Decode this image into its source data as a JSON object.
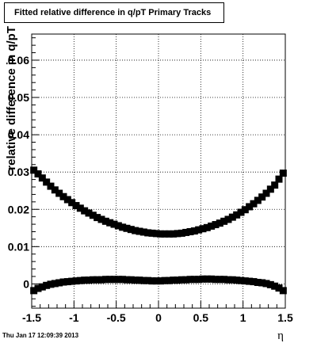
{
  "title": "Fitted relative difference in q/pT  Primary Tracks",
  "timestamp": "Thu Jan 17 12:09:39 2013",
  "chart_data": {
    "type": "scatter",
    "title": "Fitted relative difference in q/pT  Primary Tracks",
    "xlabel": "η",
    "ylabel": "relative difference in q/pT",
    "xlim": [
      -1.5,
      1.5
    ],
    "ylim": [
      -0.0065,
      0.067
    ],
    "grid": true,
    "marker": "filled-square",
    "marker_color": "#000000",
    "x_ticks": [
      {
        "value": -1.5,
        "label": "-1.5"
      },
      {
        "value": -1.0,
        "label": "-1"
      },
      {
        "value": -0.5,
        "label": "-0.5"
      },
      {
        "value": 0.0,
        "label": "0"
      },
      {
        "value": 0.5,
        "label": "0.5"
      },
      {
        "value": 1.0,
        "label": "1"
      },
      {
        "value": 1.5,
        "label": "1.5"
      }
    ],
    "y_ticks": [
      {
        "value": 0.0,
        "label": "0"
      },
      {
        "value": 0.01,
        "label": "0.01"
      },
      {
        "value": 0.02,
        "label": "0.02"
      },
      {
        "value": 0.03,
        "label": "0.03"
      },
      {
        "value": 0.04,
        "label": "0.04"
      },
      {
        "value": 0.05,
        "label": "0.05"
      },
      {
        "value": 0.06,
        "label": "0.06"
      }
    ],
    "series": [
      {
        "x": [
          -1.475,
          -1.425,
          -1.375,
          -1.325,
          -1.275,
          -1.225,
          -1.175,
          -1.125,
          -1.075,
          -1.025,
          -0.975,
          -0.925,
          -0.875,
          -0.825,
          -0.775,
          -0.725,
          -0.675,
          -0.625,
          -0.575,
          -0.525,
          -0.475,
          -0.425,
          -0.375,
          -0.325,
          -0.275,
          -0.225,
          -0.175,
          -0.125,
          -0.075,
          -0.025,
          0.025,
          0.075,
          0.125,
          0.175,
          0.225,
          0.275,
          0.325,
          0.375,
          0.425,
          0.475,
          0.525,
          0.575,
          0.625,
          0.675,
          0.725,
          0.775,
          0.825,
          0.875,
          0.925,
          0.975,
          1.025,
          1.075,
          1.125,
          1.175,
          1.225,
          1.275,
          1.325,
          1.375,
          1.425,
          1.475
        ],
        "y": [
          0.0305,
          0.0295,
          0.0284,
          0.0273,
          0.0262,
          0.0252,
          0.0243,
          0.0234,
          0.0226,
          0.0218,
          0.021,
          0.0203,
          0.0196,
          0.019,
          0.0184,
          0.0178,
          0.0173,
          0.0168,
          0.0164,
          0.016,
          0.0156,
          0.0152,
          0.0149,
          0.0146,
          0.0143,
          0.0141,
          0.0139,
          0.0137,
          0.0136,
          0.0135,
          0.0134,
          0.0134,
          0.0134,
          0.0134,
          0.0135,
          0.0136,
          0.0138,
          0.014,
          0.0142,
          0.0145,
          0.0148,
          0.0151,
          0.0155,
          0.0159,
          0.0163,
          0.0168,
          0.0173,
          0.0179,
          0.0185,
          0.0192,
          0.0199,
          0.0207,
          0.0215,
          0.0224,
          0.0233,
          0.0243,
          0.0254,
          0.0265,
          0.0281,
          0.0297
        ]
      },
      {
        "x": [
          -1.475,
          -1.425,
          -1.375,
          -1.325,
          -1.275,
          -1.225,
          -1.175,
          -1.125,
          -1.075,
          -1.025,
          -0.975,
          -0.925,
          -0.875,
          -0.825,
          -0.775,
          -0.725,
          -0.675,
          -0.625,
          -0.575,
          -0.525,
          -0.475,
          -0.425,
          -0.375,
          -0.325,
          -0.275,
          -0.225,
          -0.175,
          -0.125,
          -0.075,
          -0.025,
          0.025,
          0.075,
          0.125,
          0.175,
          0.225,
          0.275,
          0.325,
          0.375,
          0.425,
          0.475,
          0.525,
          0.575,
          0.625,
          0.675,
          0.725,
          0.775,
          0.825,
          0.875,
          0.925,
          0.975,
          1.025,
          1.075,
          1.125,
          1.175,
          1.225,
          1.275,
          1.325,
          1.375,
          1.425,
          1.475
        ],
        "y": [
          -0.0018,
          -0.0012,
          -0.0008,
          -0.0004,
          -0.0001,
          0.0001,
          0.0003,
          0.0005,
          0.0006,
          0.0007,
          0.0008,
          0.0009,
          0.001,
          0.001,
          0.0011,
          0.0011,
          0.0011,
          0.0012,
          0.0012,
          0.0012,
          0.0012,
          0.0012,
          0.0011,
          0.0011,
          0.001,
          0.001,
          0.0009,
          0.0009,
          0.0008,
          0.0008,
          0.0008,
          0.0009,
          0.0009,
          0.001,
          0.001,
          0.0011,
          0.0011,
          0.0012,
          0.0012,
          0.0012,
          0.0013,
          0.0013,
          0.0013,
          0.0012,
          0.0012,
          0.0012,
          0.0011,
          0.0011,
          0.001,
          0.0009,
          0.0008,
          0.0007,
          0.0006,
          0.0004,
          0.0003,
          0.0001,
          -0.0002,
          -0.0006,
          -0.0011,
          -0.0018
        ]
      }
    ]
  }
}
